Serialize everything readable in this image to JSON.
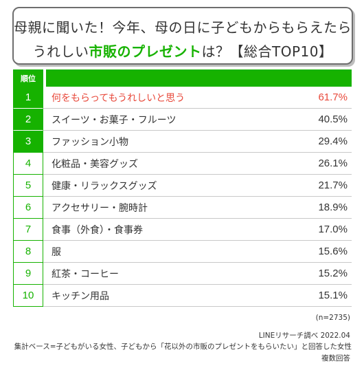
{
  "title": {
    "line1": "母親に聞いた！今年、母の日に子どもからもらえたら",
    "line2_pre": "うれしい",
    "line2_highlight": "市販のプレゼント",
    "line2_post": "は？【総合TOP10】"
  },
  "table": {
    "rank_header": "順位"
  },
  "chart_data": {
    "type": "table",
    "columns": [
      "順位",
      "",
      ""
    ],
    "rows": [
      {
        "rank": "1",
        "label": "何をもらってもうれしいと思う",
        "value_text": "61.7%",
        "value": 61.7
      },
      {
        "rank": "2",
        "label": "スイーツ・お菓子・フルーツ",
        "value_text": "40.5%",
        "value": 40.5
      },
      {
        "rank": "3",
        "label": "ファッション小物",
        "value_text": "29.4%",
        "value": 29.4
      },
      {
        "rank": "4",
        "label": "化粧品・美容グッズ",
        "value_text": "26.1%",
        "value": 26.1
      },
      {
        "rank": "5",
        "label": "健康・リラックスグッズ",
        "value_text": "21.7%",
        "value": 21.7
      },
      {
        "rank": "6",
        "label": "アクセサリー・腕時計",
        "value_text": "18.9%",
        "value": 18.9
      },
      {
        "rank": "7",
        "label": "食事（外食）・食事券",
        "value_text": "17.0%",
        "value": 17.0
      },
      {
        "rank": "8",
        "label": "服",
        "value_text": "15.6%",
        "value": 15.6
      },
      {
        "rank": "9",
        "label": "紅茶・コーヒー",
        "value_text": "15.2%",
        "value": 15.2
      },
      {
        "rank": "10",
        "label": "キッチン用品",
        "value_text": "15.1%",
        "value": 15.1
      }
    ]
  },
  "notes": {
    "n": "(n=2735)",
    "source": "LINEリサーチ調べ 2022.04",
    "base": "集計ベース=子どもがいる女性、子どもから「花以外の市販のプレゼントをもらいたい」と回答した女性",
    "multi": "複数回答"
  },
  "colors": {
    "accent": "#16b200",
    "first_item": "#e8483a"
  }
}
